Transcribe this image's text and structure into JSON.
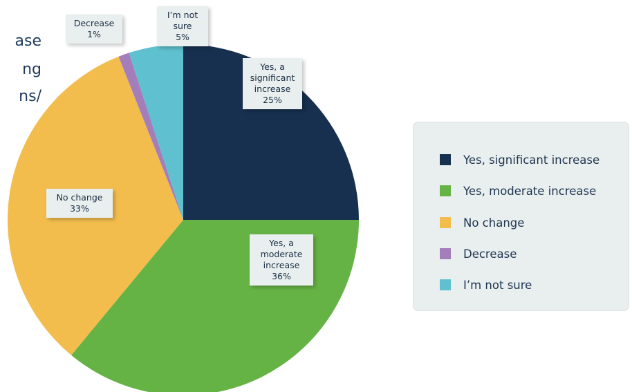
{
  "title_fragment": [
    "ase",
    "ng",
    "ns/"
  ],
  "chart_data": {
    "type": "pie",
    "slices": [
      {
        "name": "Yes, significant increase",
        "value": 25,
        "color": "#17304f",
        "callout": [
          "Yes, a",
          "significant",
          "increase",
          "25%"
        ]
      },
      {
        "name": "Yes, moderate increase",
        "value": 36,
        "color": "#66b345",
        "callout": [
          "Yes, a",
          "moderate",
          "increase",
          "36%"
        ]
      },
      {
        "name": "No change",
        "value": 33,
        "color": "#f2bd4d",
        "callout": [
          "No change",
          "33%"
        ]
      },
      {
        "name": "Decrease",
        "value": 1,
        "color": "#a47dbb",
        "callout": [
          "Decrease",
          "1%"
        ]
      },
      {
        "name": "I’m not sure",
        "value": 5,
        "color": "#5fc1cf",
        "callout": [
          "I’m not",
          "sure",
          "5%"
        ]
      }
    ],
    "legend_placement": "right"
  },
  "legend": {
    "items": [
      {
        "label": "Yes, significant increase",
        "color": "#17304f"
      },
      {
        "label": "Yes, moderate increase",
        "color": "#66b345"
      },
      {
        "label": "No change",
        "color": "#f2bd4d"
      },
      {
        "label": "Decrease",
        "color": "#a47dbb"
      },
      {
        "label": "I’m not sure",
        "color": "#5fc1cf"
      }
    ]
  }
}
